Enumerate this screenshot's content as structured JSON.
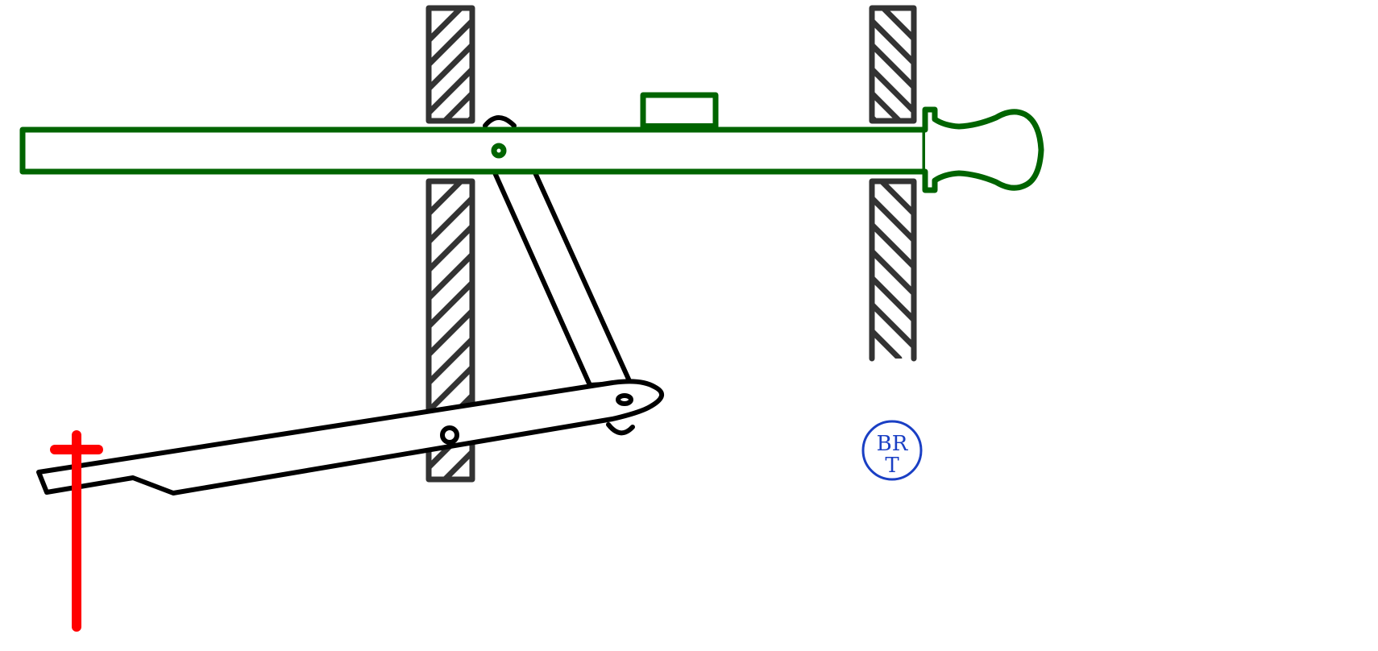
{
  "logo": {
    "line1": "BR",
    "line2": "T",
    "color": "#1a3fc4"
  },
  "colors": {
    "walls": "#333333",
    "bolt": "#006400",
    "lever": "#000000",
    "indicator": "#ff0000"
  }
}
